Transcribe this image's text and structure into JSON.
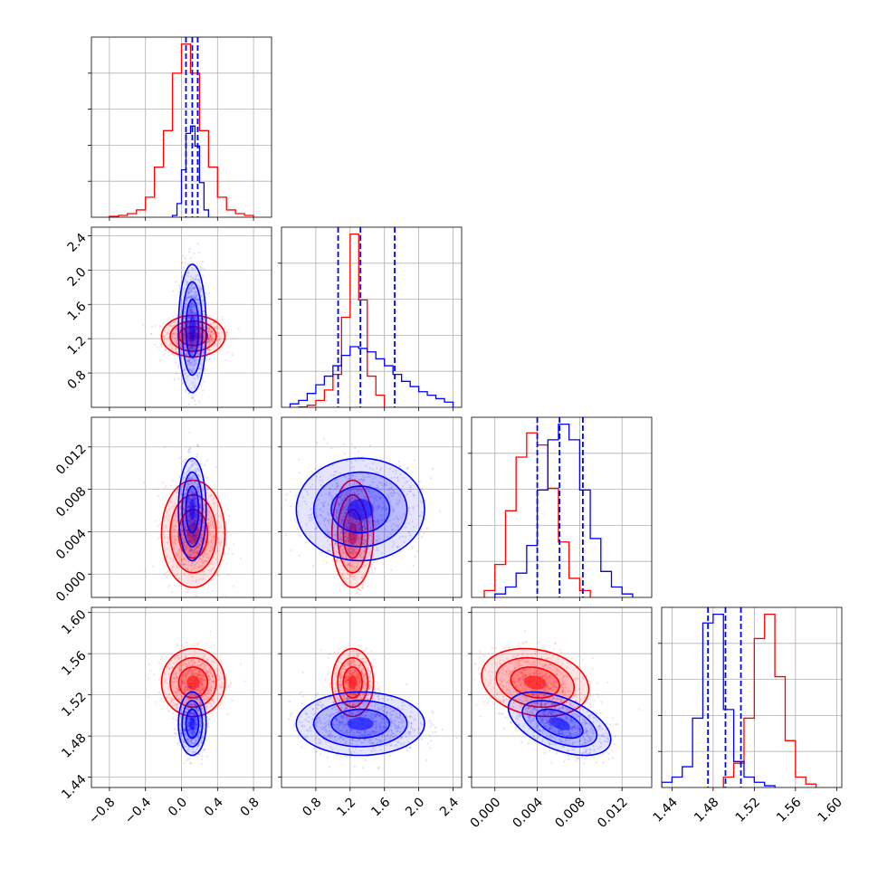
{
  "colors": {
    "series_red": "#ff0000",
    "series_blue": "#0000ff",
    "grid": "#b0b0b0",
    "axes": "#000000",
    "background": "#ffffff"
  },
  "chart_data": {
    "type": "corner",
    "grid": true,
    "title": "",
    "parameters": [
      {
        "label": "",
        "range": [
          -1.0,
          1.0
        ],
        "ticks": [
          -0.8,
          -0.4,
          0.0,
          0.4,
          0.8
        ],
        "tick_labels": [
          "−0.8",
          "−0.4",
          "0.0",
          "0.4",
          "0.8"
        ]
      },
      {
        "label": "",
        "range": [
          0.4,
          2.5
        ],
        "ticks": [
          0.8,
          1.2,
          1.6,
          2.0,
          2.4
        ],
        "tick_labels": [
          "0.8",
          "1.2",
          "1.6",
          "2.0",
          "2.4"
        ]
      },
      {
        "label": "",
        "range": [
          -0.0022,
          0.0148
        ],
        "ticks": [
          0.0,
          0.004,
          0.008,
          0.012
        ],
        "tick_labels": [
          "0.000",
          "0.004",
          "0.008",
          "0.012"
        ]
      },
      {
        "label": "",
        "range": [
          1.43,
          1.605
        ],
        "ticks": [
          1.44,
          1.48,
          1.52,
          1.56,
          1.6
        ],
        "tick_labels": [
          "1.44",
          "1.48",
          "1.52",
          "1.56",
          "1.60"
        ]
      }
    ],
    "series": [
      {
        "color": "red",
        "means": [
          0.13,
          1.23,
          0.0038,
          1.532
        ],
        "sds": [
          0.16,
          0.11,
          0.0023,
          0.015
        ],
        "correlations": [
          [
            0,
            1,
            0.0
          ],
          [
            0,
            2,
            0.0
          ],
          [
            0,
            3,
            0.0
          ],
          [
            1,
            2,
            0.0
          ],
          [
            1,
            3,
            0.0
          ],
          [
            2,
            3,
            -0.2
          ]
        ],
        "histograms": [
          {
            "edges": [
              -0.8,
              -0.7,
              -0.6,
              -0.5,
              -0.4,
              -0.3,
              -0.2,
              -0.1,
              0.0,
              0.1,
              0.2,
              0.3,
              0.4,
              0.5,
              0.6,
              0.7,
              0.8
            ],
            "counts": [
              1,
              2,
              4,
              8,
              22,
              55,
              95,
              158,
              190,
              158,
              95,
              55,
              22,
              8,
              4,
              2
            ]
          },
          {
            "edges": [
              0.6,
              0.7,
              0.8,
              0.9,
              1.0,
              1.1,
              1.2,
              1.3,
              1.4,
              1.5,
              1.6
            ],
            "counts": [
              0.2,
              1.2,
              4,
              10,
              19,
              52,
              100,
              62,
              18,
              7
            ]
          },
          {
            "edges": [
              -0.001,
              0.0,
              0.001,
              0.002,
              0.003,
              0.004,
              0.005,
              0.006,
              0.007,
              0.008,
              0.009
            ],
            "counts": [
              4,
              19,
              50,
              81,
              95,
              88,
              63,
              32,
              11,
              4
            ]
          },
          {
            "edges": [
              1.49,
              1.5,
              1.51,
              1.52,
              1.53,
              1.54,
              1.55,
              1.56,
              1.57,
              1.58
            ],
            "counts": [
              6,
              14,
              40,
              86,
              100,
              64,
              27,
              6,
              2
            ]
          }
        ]
      },
      {
        "color": "blue",
        "means": [
          0.12,
          1.32,
          0.0061,
          1.492
        ],
        "sds": [
          0.07,
          0.34,
          0.0022,
          0.014
        ],
        "correlations": [
          [
            0,
            1,
            0.0
          ],
          [
            0,
            2,
            0.0
          ],
          [
            0,
            3,
            0.0
          ],
          [
            1,
            2,
            0.0
          ],
          [
            1,
            3,
            0.0
          ],
          [
            2,
            3,
            -0.5
          ]
        ],
        "quantiles": [
          [
            0.05,
            0.12,
            0.18
          ],
          [
            1.06,
            1.32,
            1.72
          ],
          [
            0.004,
            0.0061,
            0.0083
          ],
          [
            1.475,
            1.492,
            1.507
          ]
        ],
        "histograms": [
          {
            "edges": [
              -0.1,
              -0.05,
              0.0,
              0.05,
              0.1,
              0.15,
              0.2,
              0.25,
              0.3
            ],
            "counts": [
              2,
              15,
              52,
              92,
              100,
              78,
              38,
              8
            ]
          },
          {
            "edges": [
              0.5,
              0.6,
              0.7,
              0.8,
              0.9,
              1.0,
              1.1,
              1.2,
              1.3,
              1.4,
              1.5,
              1.6,
              1.7,
              1.8,
              1.9,
              2.0,
              2.1,
              2.2,
              2.3,
              2.4
            ],
            "counts": [
              2,
              4,
              8,
              13,
              18,
              24,
              30,
              35,
              34,
              32,
              28,
              24,
              19,
              15,
              12,
              9,
              7,
              5,
              3
            ]
          },
          {
            "edges": [
              0.0,
              0.001,
              0.002,
              0.003,
              0.004,
              0.005,
              0.006,
              0.007,
              0.008,
              0.009,
              0.01,
              0.011,
              0.012,
              0.013
            ],
            "counts": [
              2,
              6,
              14,
              30,
              62,
              91,
              100,
              91,
              62,
              34,
              15,
              6,
              2
            ]
          },
          {
            "edges": [
              1.43,
              1.44,
              1.45,
              1.46,
              1.47,
              1.48,
              1.49,
              1.5,
              1.51,
              1.52,
              1.53,
              1.54
            ],
            "counts": [
              3,
              6,
              12,
              40,
              95,
              100,
              45,
              15,
              6,
              3,
              1
            ]
          }
        ]
      }
    ]
  }
}
